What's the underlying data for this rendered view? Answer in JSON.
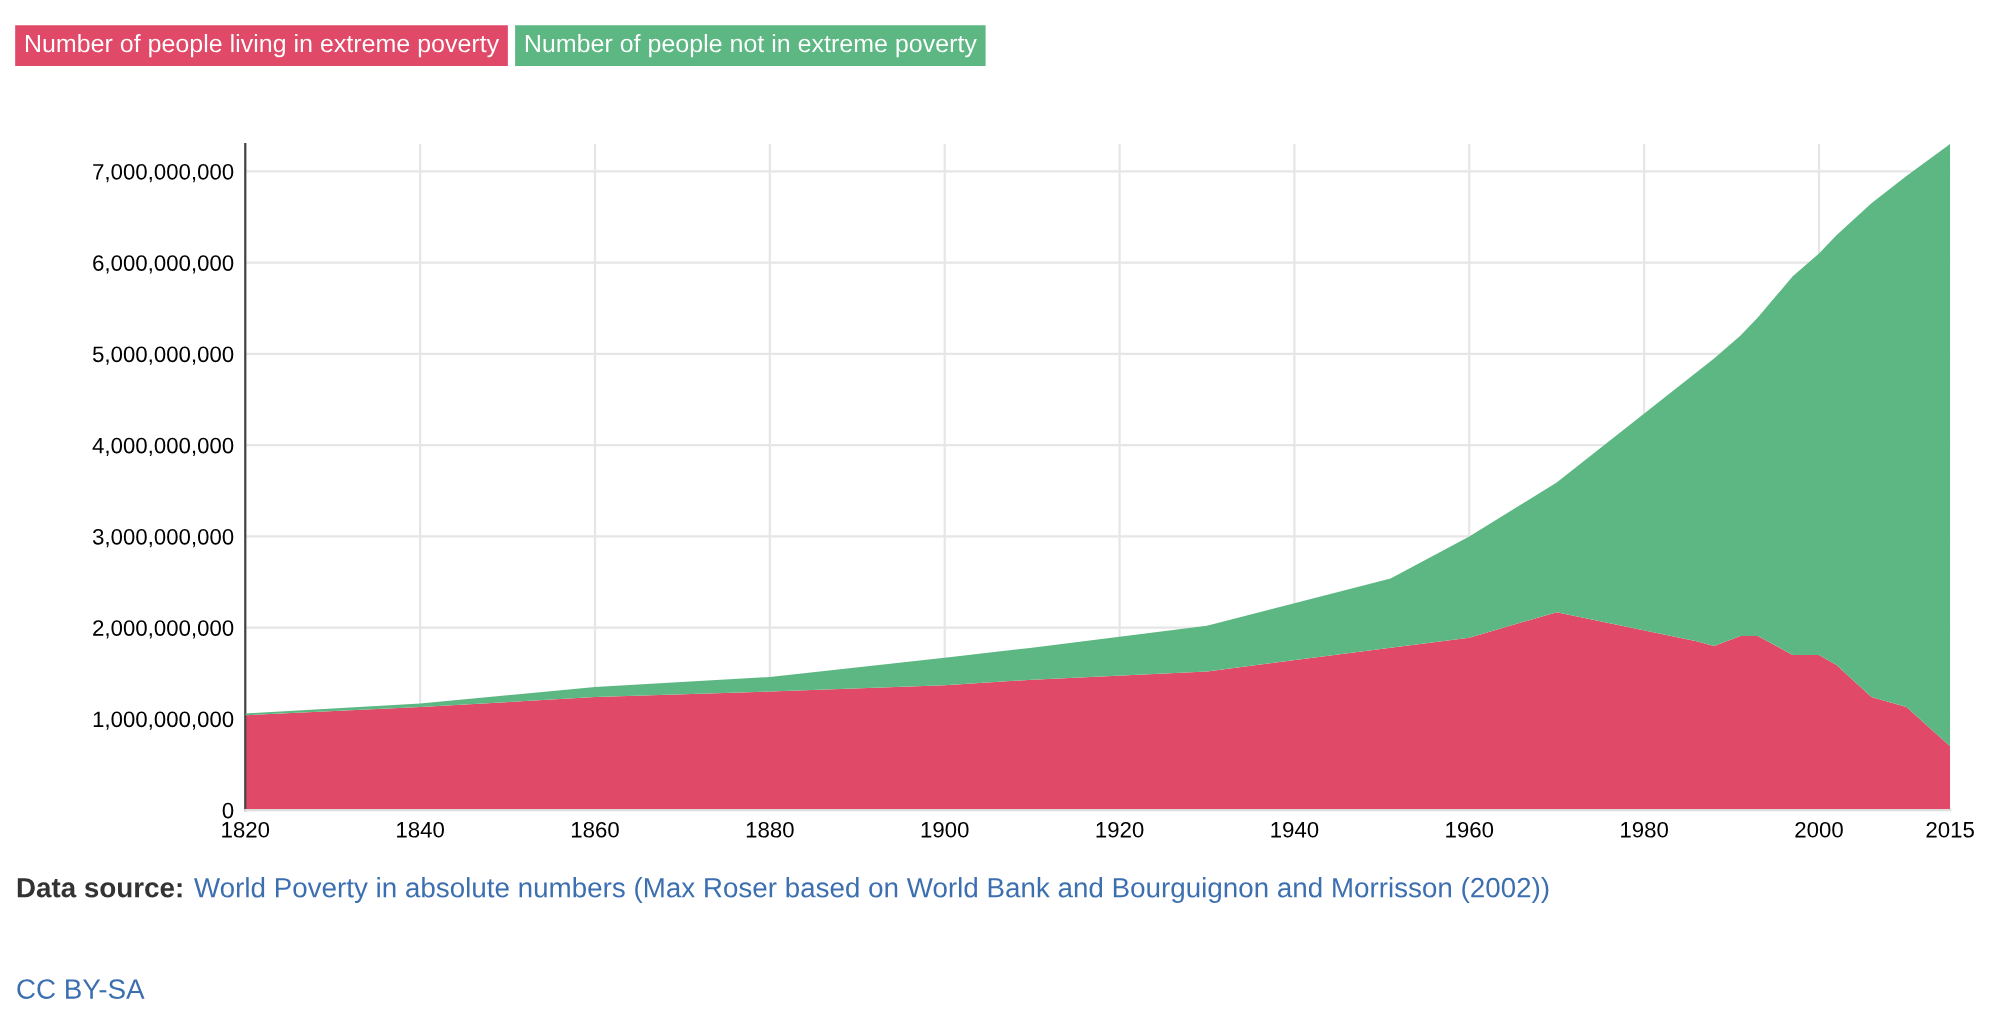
{
  "chart_data": {
    "type": "area",
    "stacked": true,
    "legend": "top left",
    "grid": true,
    "x": [
      1820,
      1840,
      1860,
      1880,
      1900,
      1910,
      1930,
      1951,
      1960,
      1970,
      1986,
      1988,
      1991,
      1993,
      1997,
      2000,
      2002,
      2006,
      2010,
      2015
    ],
    "series": [
      {
        "name": "Number of people living in extreme poverty",
        "color": "#e04a68",
        "values": [
          1040000000,
          1130000000,
          1240000000,
          1300000000,
          1370000000,
          1430000000,
          1520000000,
          1780000000,
          1890000000,
          2170000000,
          1850000000,
          1800000000,
          1910000000,
          1910000000,
          1700000000,
          1700000000,
          1590000000,
          1240000000,
          1130000000,
          700000000
        ]
      },
      {
        "name": "Number of people not in extreme poverty",
        "color": "#5cb783",
        "values": [
          20000000,
          40000000,
          110000000,
          160000000,
          300000000,
          350000000,
          500000000,
          760000000,
          1110000000,
          1420000000,
          2950000000,
          3150000000,
          3290000000,
          3490000000,
          4150000000,
          4400000000,
          4710000000,
          5410000000,
          5820000000,
          6600000000
        ]
      }
    ],
    "xlim": [
      1820,
      2015
    ],
    "xticks": [
      1820,
      1840,
      1860,
      1880,
      1900,
      1920,
      1940,
      1960,
      1980,
      2000,
      2015
    ],
    "ylim": [
      0,
      7300000000
    ],
    "yticks": [
      0,
      {
        "value": 1000000000,
        "label": "1,000,000,000"
      },
      {
        "value": 2000000000,
        "label": "2,000,000,000"
      },
      {
        "value": 3000000000,
        "label": "3,000,000,000"
      },
      {
        "value": 4000000000,
        "label": "4,000,000,000"
      },
      {
        "value": 5000000000,
        "label": "5,000,000,000"
      },
      {
        "value": 6000000000,
        "label": "6,000,000,000"
      },
      {
        "value": 7000000000,
        "label": "7,000,000,000"
      }
    ],
    "annotations": [
      "Data source:",
      "World Poverty in absolute numbers (Max Roser based on World Bank and Bourguignon and Morrisson (2002))",
      "CC BY-SA"
    ]
  }
}
